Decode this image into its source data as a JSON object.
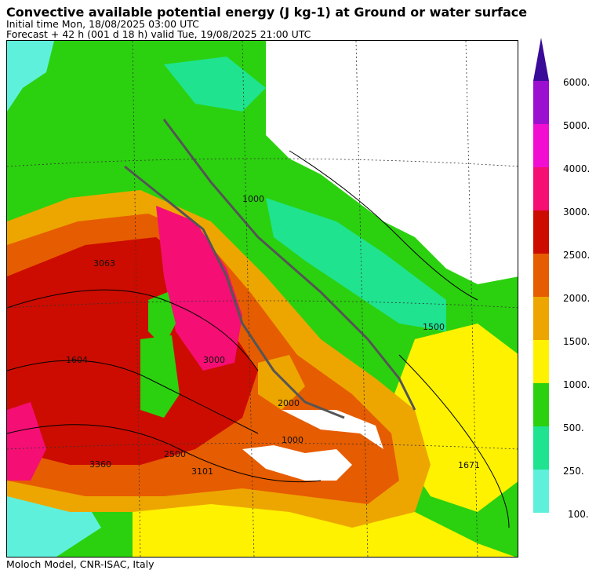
{
  "header": {
    "title": "Convective available potential energy (J kg-1) at Ground or water surface",
    "initial_time": "Initial time  Mon, 18/08/2025  03:00 UTC",
    "forecast": "Forecast  +  42 h  (001 d 18 h)  valid Tue, 19/08/2025 21:00 UTC"
  },
  "footer": {
    "credit": "Moloch Model, CNR-ISAC, Italy"
  },
  "legend": {
    "labels": [
      "6000.",
      "5000.",
      "4000.",
      "3000.",
      "2500.",
      "2000.",
      "1500.",
      "1000.",
      "500.",
      "250.",
      "100."
    ],
    "colors": [
      "#3a0a99",
      "#9b10d0",
      "#f20ed0",
      "#f50e74",
      "#cc0c00",
      "#e65c00",
      "#eda600",
      "#fff200",
      "#2bd10e",
      "#1fe38f",
      "#5ff0dc"
    ]
  },
  "map_labels": [
    "1000",
    "1500",
    "2000",
    "2500",
    "3000",
    "3360",
    "3101",
    "1604",
    "3063",
    "1671",
    "1000"
  ],
  "colors": {
    "c100": "#5ff0dc",
    "c250": "#1fe38f",
    "c500": "#2bd10e",
    "c1000": "#fff200",
    "c1500": "#eda600",
    "c2000": "#e65c00",
    "c2500": "#cc0c00",
    "c3000": "#f50e74",
    "c4000": "#f20ed0",
    "land_border": "#555555",
    "grid": "#333333"
  }
}
